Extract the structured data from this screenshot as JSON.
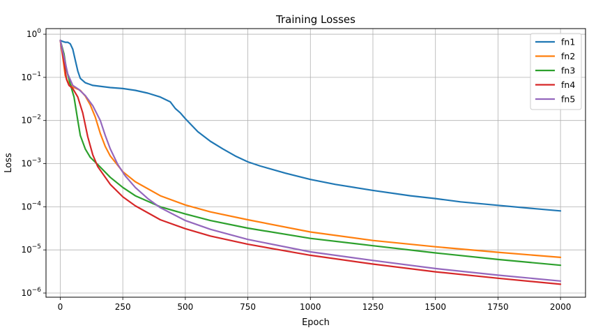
{
  "chart_data": {
    "type": "line",
    "title": "Training Losses",
    "xlabel": "Epoch",
    "ylabel": "Loss",
    "xlim": [
      -57,
      2100
    ],
    "xticks": [
      0,
      250,
      500,
      750,
      1000,
      1250,
      1500,
      1750,
      2000
    ],
    "yscale": "log",
    "ylim": [
      8e-07,
      1.35
    ],
    "yticks": [
      {
        "value": 1,
        "base": "10",
        "exp": "0"
      },
      {
        "value": 0.1,
        "base": "10",
        "exp": "−1"
      },
      {
        "value": 0.01,
        "base": "10",
        "exp": "−2"
      },
      {
        "value": 0.001,
        "base": "10",
        "exp": "−3"
      },
      {
        "value": 0.0001,
        "base": "10",
        "exp": "−4"
      },
      {
        "value": 1e-05,
        "base": "10",
        "exp": "−5"
      },
      {
        "value": 1e-06,
        "base": "10",
        "exp": "−6"
      }
    ],
    "grid": true,
    "legend_position": "top-right",
    "series": [
      {
        "name": "fn1",
        "color": "#1f77b4",
        "points": [
          [
            0,
            0.72
          ],
          [
            10,
            0.68
          ],
          [
            20,
            0.65
          ],
          [
            30,
            0.65
          ],
          [
            40,
            0.6
          ],
          [
            50,
            0.45
          ],
          [
            60,
            0.25
          ],
          [
            70,
            0.14
          ],
          [
            80,
            0.095
          ],
          [
            100,
            0.075
          ],
          [
            130,
            0.065
          ],
          [
            200,
            0.058
          ],
          [
            250,
            0.055
          ],
          [
            300,
            0.05
          ],
          [
            350,
            0.043
          ],
          [
            400,
            0.035
          ],
          [
            440,
            0.027
          ],
          [
            460,
            0.019
          ],
          [
            480,
            0.015
          ],
          [
            500,
            0.011
          ],
          [
            550,
            0.0055
          ],
          [
            600,
            0.0033
          ],
          [
            650,
            0.0022
          ],
          [
            700,
            0.0015
          ],
          [
            750,
            0.0011
          ],
          [
            800,
            0.00088
          ],
          [
            900,
            0.0006
          ],
          [
            1000,
            0.00043
          ],
          [
            1100,
            0.00033
          ],
          [
            1250,
            0.00024
          ],
          [
            1400,
            0.00018
          ],
          [
            1500,
            0.000155
          ],
          [
            1600,
            0.00013
          ],
          [
            1750,
            0.000108
          ],
          [
            1900,
            9e-05
          ],
          [
            2000,
            8e-05
          ]
        ]
      },
      {
        "name": "fn2",
        "color": "#ff7f0e",
        "points": [
          [
            0,
            0.72
          ],
          [
            10,
            0.3
          ],
          [
            20,
            0.11
          ],
          [
            30,
            0.08
          ],
          [
            50,
            0.06
          ],
          [
            80,
            0.05
          ],
          [
            100,
            0.037
          ],
          [
            120,
            0.023
          ],
          [
            140,
            0.012
          ],
          [
            160,
            0.005
          ],
          [
            180,
            0.0025
          ],
          [
            200,
            0.0015
          ],
          [
            250,
            0.00065
          ],
          [
            300,
            0.00038
          ],
          [
            400,
            0.00018
          ],
          [
            500,
            0.00011
          ],
          [
            600,
            7.6e-05
          ],
          [
            750,
            5e-05
          ],
          [
            1000,
            2.6e-05
          ],
          [
            1250,
            1.65e-05
          ],
          [
            1500,
            1.18e-05
          ],
          [
            1750,
            8.8e-06
          ],
          [
            2000,
            6.7e-06
          ]
        ]
      },
      {
        "name": "fn3",
        "color": "#2ca02c",
        "points": [
          [
            0,
            0.72
          ],
          [
            15,
            0.35
          ],
          [
            25,
            0.15
          ],
          [
            40,
            0.07
          ],
          [
            55,
            0.035
          ],
          [
            70,
            0.01
          ],
          [
            80,
            0.0045
          ],
          [
            100,
            0.0022
          ],
          [
            120,
            0.0014
          ],
          [
            150,
            0.00095
          ],
          [
            200,
            0.00048
          ],
          [
            250,
            0.00028
          ],
          [
            300,
            0.00018
          ],
          [
            400,
            0.0001
          ],
          [
            500,
            6.8e-05
          ],
          [
            600,
            4.8e-05
          ],
          [
            750,
            3.2e-05
          ],
          [
            1000,
            1.85e-05
          ],
          [
            1250,
            1.25e-05
          ],
          [
            1500,
            8.5e-06
          ],
          [
            1750,
            6e-06
          ],
          [
            2000,
            4.4e-06
          ]
        ]
      },
      {
        "name": "fn4",
        "color": "#d62728",
        "points": [
          [
            0,
            0.72
          ],
          [
            15,
            0.22
          ],
          [
            25,
            0.09
          ],
          [
            35,
            0.065
          ],
          [
            50,
            0.055
          ],
          [
            70,
            0.035
          ],
          [
            90,
            0.015
          ],
          [
            110,
            0.0042
          ],
          [
            130,
            0.0016
          ],
          [
            150,
            0.00085
          ],
          [
            200,
            0.00033
          ],
          [
            250,
            0.00017
          ],
          [
            300,
            0.000105
          ],
          [
            400,
            5e-05
          ],
          [
            500,
            3.1e-05
          ],
          [
            600,
            2.1e-05
          ],
          [
            750,
            1.35e-05
          ],
          [
            1000,
            7.5e-06
          ],
          [
            1250,
            4.7e-06
          ],
          [
            1500,
            3.1e-06
          ],
          [
            1750,
            2.2e-06
          ],
          [
            2000,
            1.6e-06
          ]
        ]
      },
      {
        "name": "fn5",
        "color": "#9467bd",
        "points": [
          [
            0,
            0.72
          ],
          [
            15,
            0.3
          ],
          [
            30,
            0.12
          ],
          [
            50,
            0.065
          ],
          [
            75,
            0.052
          ],
          [
            100,
            0.038
          ],
          [
            130,
            0.022
          ],
          [
            160,
            0.01
          ],
          [
            180,
            0.0045
          ],
          [
            200,
            0.0022
          ],
          [
            230,
            0.00095
          ],
          [
            260,
            0.00052
          ],
          [
            300,
            0.00028
          ],
          [
            350,
            0.000155
          ],
          [
            400,
            9.5e-05
          ],
          [
            500,
            4.8e-05
          ],
          [
            600,
            3e-05
          ],
          [
            750,
            1.75e-05
          ],
          [
            1000,
            9e-06
          ],
          [
            1250,
            5.7e-06
          ],
          [
            1500,
            3.7e-06
          ],
          [
            1750,
            2.6e-06
          ],
          [
            2000,
            1.9e-06
          ]
        ]
      }
    ]
  }
}
